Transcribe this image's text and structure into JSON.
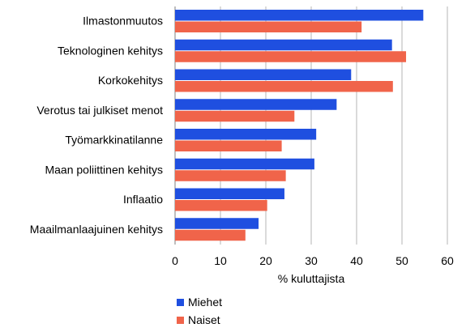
{
  "chart_data": {
    "type": "bar",
    "orientation": "horizontal",
    "categories": [
      "Ilmastonmuutos",
      "Teknologinen kehitys",
      "Korkokehitys",
      "Verotus tai julkiset menot",
      "Työmarkkinatilanne",
      "Maan poliittinen kehitys",
      "Inflaatio",
      "Maailmanlaajuinen kehitys"
    ],
    "series": [
      {
        "name": "Miehet",
        "color": "#1f4fe0",
        "values": [
          54.7,
          47.8,
          38.8,
          35.6,
          31.1,
          30.7,
          24.1,
          18.4
        ]
      },
      {
        "name": "Naiset",
        "color": "#f0644a",
        "values": [
          41.1,
          50.9,
          48.0,
          26.3,
          23.5,
          24.4,
          20.3,
          15.5
        ]
      }
    ],
    "xlabel": "% kuluttajista",
    "xlim": [
      0,
      60
    ],
    "xticks": [
      0,
      10,
      20,
      30,
      40,
      50,
      60
    ],
    "grid": "vertical",
    "legend_position": "bottom"
  }
}
